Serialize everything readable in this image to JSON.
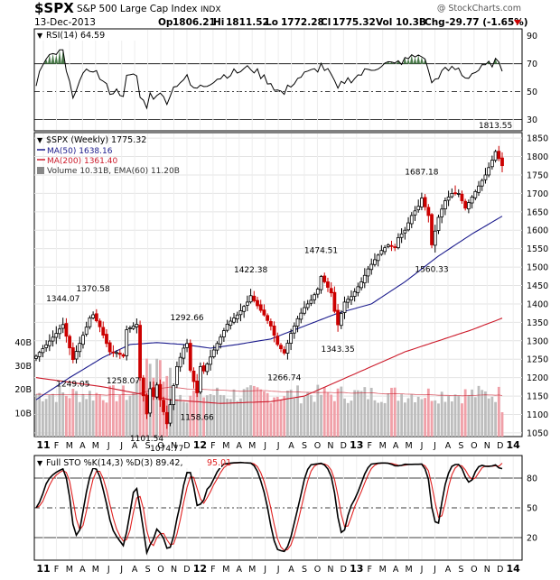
{
  "header": {
    "symbol": "$SPX",
    "name": "S&P 500 Large Cap Index",
    "exchange": "INDX",
    "date": "13-Dec-2013",
    "watermark": "@ StockCharts.com",
    "quote": {
      "op_label": "Op",
      "op": "1806.21",
      "hi_label": "Hi",
      "hi": "1811.52",
      "lo_label": "Lo",
      "lo": "1772.28",
      "cl_label": "Cl",
      "cl": "1775.32",
      "vol_label": "Vol",
      "vol": "10.3B",
      "chg_label": "Chg",
      "chg": "-29.77 (-1.65%)"
    }
  },
  "legends": {
    "rsi": "RSI(14) 64.59",
    "price": "$SPX (Weekly) 1775.32",
    "ma50": "MA(50) 1638.16",
    "ma200": "MA(200) 1361.40",
    "volume": "Volume 10.31B, EMA(60) 11.20B",
    "sto": "Full STO %K(14,3) %D(3) 89.42,",
    "sto_d": "95.01"
  },
  "colors": {
    "up_candle": "#000000",
    "down_candle": "#cc0000",
    "ma50": "#1a1a8c",
    "ma200": "#cc1a2a",
    "volume_up": "#bdbdbd",
    "volume_down": "#f0a0a8",
    "rsi_fill": "#4a7a4a",
    "sto_k": "#000000",
    "sto_d": "#e02020"
  },
  "x_axis_labels": [
    "11",
    "F",
    "M",
    "A",
    "M",
    "J",
    "J",
    "A",
    "S",
    "O",
    "N",
    "D",
    "12",
    "F",
    "M",
    "A",
    "M",
    "J",
    "J",
    "A",
    "S",
    "O",
    "N",
    "D",
    "13",
    "F",
    "M",
    "A",
    "M",
    "J",
    "J",
    "A",
    "S",
    "O",
    "N",
    "D",
    "14"
  ],
  "chart_data": [
    {
      "type": "line",
      "name": "RSI(14)",
      "yticks": [
        30,
        50,
        70,
        90
      ],
      "ylim": [
        22,
        95
      ],
      "reference_lines": [
        30,
        50,
        70
      ],
      "last_value": 64.59
    },
    {
      "type": "candlestick",
      "name": "$SPX (Weekly)",
      "period": "weekly",
      "x_range": [
        "2011-01",
        "2013-12"
      ],
      "yticks": [
        1050,
        1100,
        1150,
        1200,
        1250,
        1300,
        1350,
        1400,
        1450,
        1500,
        1550,
        1600,
        1650,
        1700,
        1750,
        1800,
        1850
      ],
      "ylim": [
        1040,
        1865
      ],
      "close_points": [
        [
          0,
          1258
        ],
        [
          6,
          1320
        ],
        [
          8,
          1344.07
        ],
        [
          11,
          1249.05
        ],
        [
          15,
          1337
        ],
        [
          16,
          1362
        ],
        [
          17,
          1370.58
        ],
        [
          19,
          1338
        ],
        [
          22,
          1270
        ],
        [
          24,
          1268
        ],
        [
          26,
          1258.07
        ],
        [
          27,
          1330
        ],
        [
          29,
          1340
        ],
        [
          30,
          1345
        ],
        [
          31,
          1200
        ],
        [
          33,
          1101.54
        ],
        [
          34,
          1170
        ],
        [
          35,
          1150
        ],
        [
          36,
          1180
        ],
        [
          37,
          1140
        ],
        [
          39,
          1074.77
        ],
        [
          42,
          1230
        ],
        [
          44,
          1280
        ],
        [
          45,
          1292.66
        ],
        [
          46,
          1220
        ],
        [
          48,
          1158.66
        ],
        [
          49,
          1230
        ],
        [
          50,
          1218
        ],
        [
          53,
          1275
        ],
        [
          55,
          1310
        ],
        [
          57,
          1345
        ],
        [
          60,
          1370
        ],
        [
          63,
          1405
        ],
        [
          64,
          1422.38
        ],
        [
          66,
          1395
        ],
        [
          68,
          1370
        ],
        [
          70,
          1340
        ],
        [
          72,
          1290
        ],
        [
          74,
          1266.74
        ],
        [
          76,
          1320
        ],
        [
          78,
          1360
        ],
        [
          80,
          1390
        ],
        [
          82,
          1410
        ],
        [
          84,
          1440
        ],
        [
          85,
          1474.51
        ],
        [
          86,
          1460
        ],
        [
          88,
          1430
        ],
        [
          89,
          1380
        ],
        [
          90,
          1343.35
        ],
        [
          92,
          1405
        ],
        [
          94,
          1420
        ],
        [
          97,
          1460
        ],
        [
          99,
          1495
        ],
        [
          101,
          1520
        ],
        [
          103,
          1545
        ],
        [
          105,
          1560
        ],
        [
          107,
          1555
        ],
        [
          108,
          1580
        ],
        [
          110,
          1600
        ],
        [
          112,
          1640
        ],
        [
          114,
          1665
        ],
        [
          115,
          1687.18
        ],
        [
          117,
          1640
        ],
        [
          118,
          1560.33
        ],
        [
          120,
          1635
        ],
        [
          122,
          1680
        ],
        [
          124,
          1700
        ],
        [
          126,
          1700
        ],
        [
          128,
          1660
        ],
        [
          130,
          1690
        ],
        [
          132,
          1720
        ],
        [
          134,
          1750
        ],
        [
          136,
          1790
        ],
        [
          137,
          1813.55
        ],
        [
          139,
          1775.32
        ]
      ],
      "labels": [
        {
          "value": 1344.07,
          "text": "1344.07"
        },
        {
          "value": 1249.05,
          "text": "1249.05"
        },
        {
          "value": 1370.58,
          "text": "1370.58"
        },
        {
          "value": 1258.07,
          "text": "1258.07"
        },
        {
          "value": 1101.54,
          "text": "1101.54"
        },
        {
          "value": 1074.77,
          "text": "1074.77"
        },
        {
          "value": 1292.66,
          "text": "1292.66"
        },
        {
          "value": 1158.66,
          "text": "1158.66"
        },
        {
          "value": 1422.38,
          "text": "1422.38"
        },
        {
          "value": 1266.74,
          "text": "1266.74"
        },
        {
          "value": 1474.51,
          "text": "1474.51"
        },
        {
          "value": 1343.35,
          "text": "1343.35"
        },
        {
          "value": 1687.18,
          "text": "1687.18"
        },
        {
          "value": 1560.33,
          "text": "1560.33"
        },
        {
          "value": 1813.55,
          "text": "1813.55"
        }
      ],
      "ma50_points": [
        [
          0,
          1140
        ],
        [
          10,
          1200
        ],
        [
          20,
          1255
        ],
        [
          28,
          1290
        ],
        [
          36,
          1295
        ],
        [
          44,
          1290
        ],
        [
          52,
          1280
        ],
        [
          60,
          1290
        ],
        [
          70,
          1305
        ],
        [
          80,
          1340
        ],
        [
          90,
          1375
        ],
        [
          100,
          1400
        ],
        [
          110,
          1460
        ],
        [
          120,
          1530
        ],
        [
          130,
          1590
        ],
        [
          139,
          1638.16
        ]
      ],
      "ma200_points": [
        [
          0,
          1200
        ],
        [
          20,
          1175
        ],
        [
          40,
          1140
        ],
        [
          55,
          1130
        ],
        [
          70,
          1135
        ],
        [
          80,
          1150
        ],
        [
          90,
          1190
        ],
        [
          100,
          1230
        ],
        [
          110,
          1270
        ],
        [
          120,
          1300
        ],
        [
          130,
          1330
        ],
        [
          139,
          1361.4
        ]
      ],
      "volume_axis": {
        "ticks": [
          "10B",
          "20B",
          "30B",
          "40B"
        ],
        "values": [
          10,
          20,
          30,
          40
        ],
        "max": 55
      },
      "volume_last": 10.31,
      "volume_ema_last": 11.2
    },
    {
      "type": "line",
      "name": "Full STO %K(14,3) %D(3)",
      "yticks": [
        20,
        50,
        80
      ],
      "ylim": [
        0,
        100
      ],
      "reference_lines": [
        20,
        50,
        80
      ],
      "last_k": 89.42,
      "last_d": 95.01
    }
  ]
}
